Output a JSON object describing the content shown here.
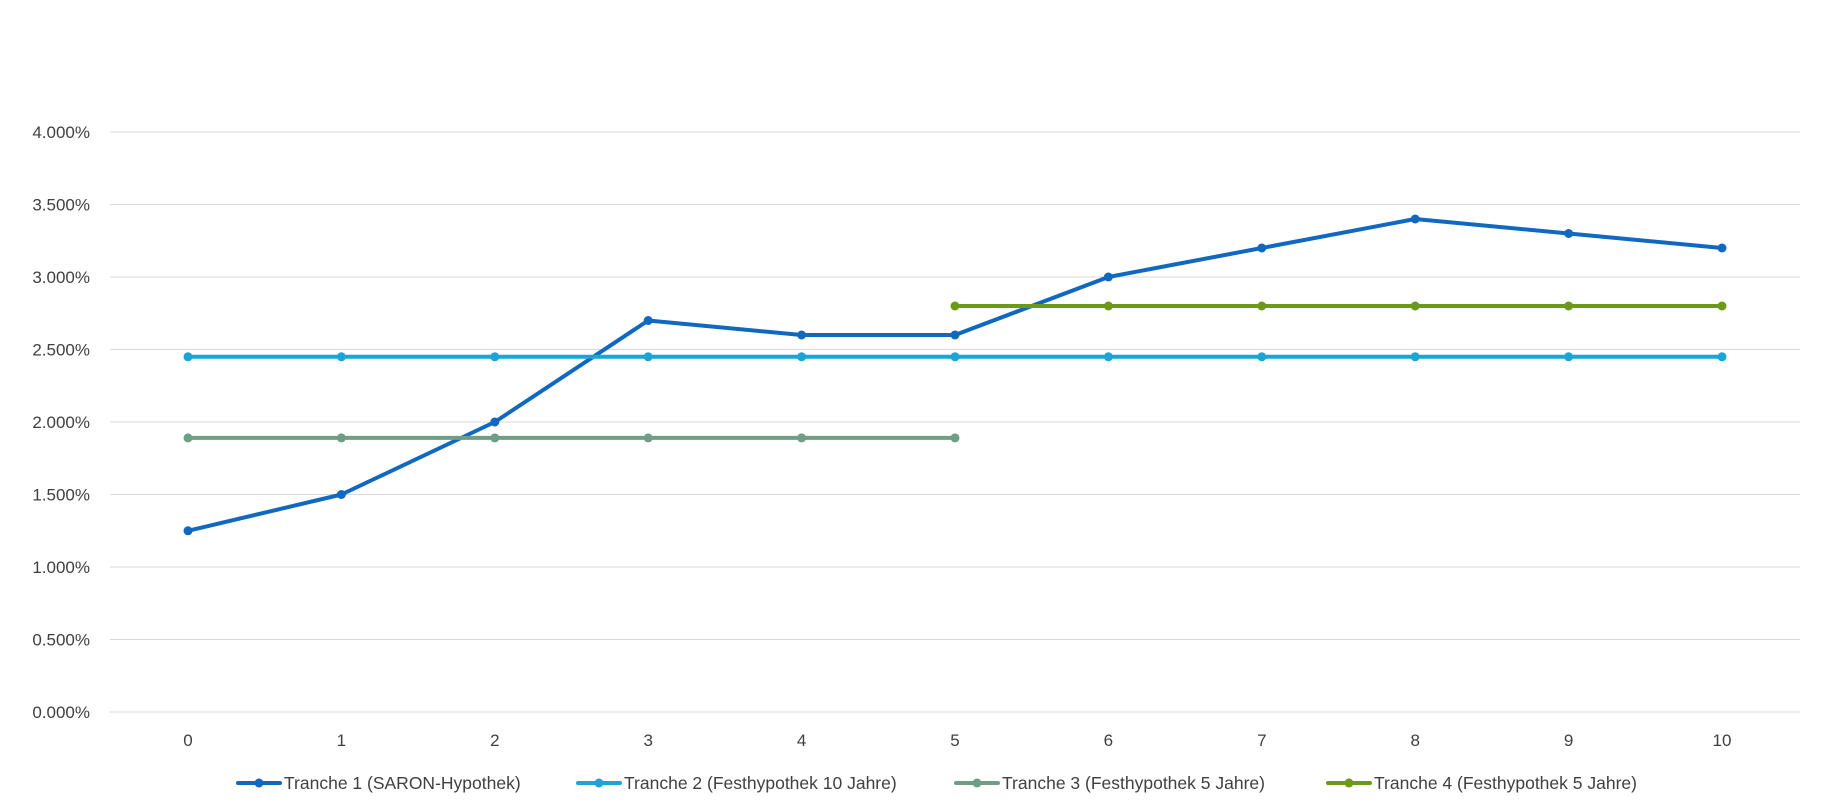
{
  "chart_data": {
    "type": "line",
    "title": "",
    "xlabel": "",
    "ylabel": "",
    "x": [
      0,
      1,
      2,
      3,
      4,
      5,
      6,
      7,
      8,
      9,
      10
    ],
    "x_tick_labels": [
      "0",
      "1",
      "2",
      "3",
      "4",
      "5",
      "6",
      "7",
      "8",
      "9",
      "10"
    ],
    "ylim": [
      0,
      4
    ],
    "y_tick_values": [
      0,
      0.5,
      1,
      1.5,
      2,
      2.5,
      3,
      3.5,
      4
    ],
    "y_tick_labels": [
      "0.000%",
      "0.500%",
      "1.000%",
      "1.500%",
      "2.000%",
      "2.500%",
      "3.000%",
      "3.500%",
      "4.000%"
    ],
    "grid": true,
    "legend_position": "bottom",
    "series": [
      {
        "name": "Tranche 1 (SARON-Hypothek)",
        "color": "#1068c0",
        "x": [
          0,
          1,
          2,
          3,
          4,
          5,
          6,
          7,
          8,
          9,
          10
        ],
        "values": [
          1.25,
          1.5,
          2.0,
          2.7,
          2.6,
          2.6,
          3.0,
          3.2,
          3.4,
          3.3,
          3.2
        ]
      },
      {
        "name": "Tranche 2 (Festhypothek 10 Jahre)",
        "color": "#1aa5d6",
        "x": [
          0,
          1,
          2,
          3,
          4,
          5,
          6,
          7,
          8,
          9,
          10
        ],
        "values": [
          2.45,
          2.45,
          2.45,
          2.45,
          2.45,
          2.45,
          2.45,
          2.45,
          2.45,
          2.45,
          2.45
        ]
      },
      {
        "name": "Tranche 3 (Festhypothek 5 Jahre)",
        "color": "#6f9e87",
        "x": [
          0,
          1,
          2,
          3,
          4,
          5
        ],
        "values": [
          1.89,
          1.89,
          1.89,
          1.89,
          1.89,
          1.89
        ]
      },
      {
        "name": "Tranche 4 (Festhypothek 5 Jahre)",
        "color": "#6a9a16",
        "x": [
          5,
          6,
          7,
          8,
          9,
          10
        ],
        "values": [
          2.8,
          2.8,
          2.8,
          2.8,
          2.8,
          2.8
        ]
      }
    ]
  }
}
